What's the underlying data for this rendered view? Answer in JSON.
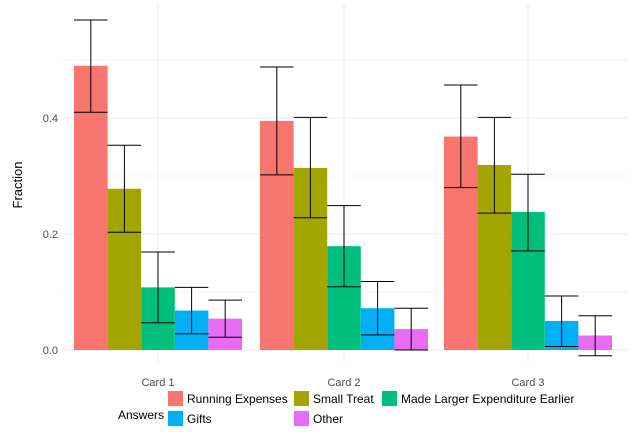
{
  "chart_data": {
    "type": "bar",
    "title": "",
    "xlabel": "",
    "ylabel": "Fraction",
    "ylim": [
      0,
      0.57
    ],
    "yticks": [
      0.0,
      0.2,
      0.4
    ],
    "ytick_labels": [
      "0.0",
      "0.2",
      "0.4"
    ],
    "grid": true,
    "error_bars": true,
    "legend_position": "bottom",
    "legend_title": "Answers",
    "categories": [
      "Card 1",
      "Card 2",
      "Card 3"
    ],
    "series": [
      {
        "name": "Running Expenses",
        "color": "#F8766D",
        "values": [
          0.49,
          0.395,
          0.368
        ],
        "err_low": [
          0.41,
          0.302,
          0.28
        ],
        "err_high": [
          0.569,
          0.488,
          0.457
        ]
      },
      {
        "name": "Small Treat",
        "color": "#A3A500",
        "values": [
          0.278,
          0.314,
          0.319
        ],
        "err_low": [
          0.203,
          0.228,
          0.236
        ],
        "err_high": [
          0.353,
          0.401,
          0.401
        ]
      },
      {
        "name": "Made Larger Expenditure Earlier",
        "color": "#00BF7D",
        "values": [
          0.108,
          0.179,
          0.238
        ],
        "err_low": [
          0.047,
          0.109,
          0.171
        ],
        "err_high": [
          0.169,
          0.249,
          0.303
        ]
      },
      {
        "name": "Gifts",
        "color": "#00B0F6",
        "values": [
          0.068,
          0.072,
          0.05
        ],
        "err_low": [
          0.028,
          0.026,
          0.006
        ],
        "err_high": [
          0.108,
          0.118,
          0.093
        ]
      },
      {
        "name": "Other",
        "color": "#E76BF3",
        "values": [
          0.054,
          0.036,
          0.025
        ],
        "err_low": [
          0.022,
          0.0,
          -0.01
        ],
        "err_high": [
          0.086,
          0.072,
          0.059
        ]
      }
    ]
  }
}
